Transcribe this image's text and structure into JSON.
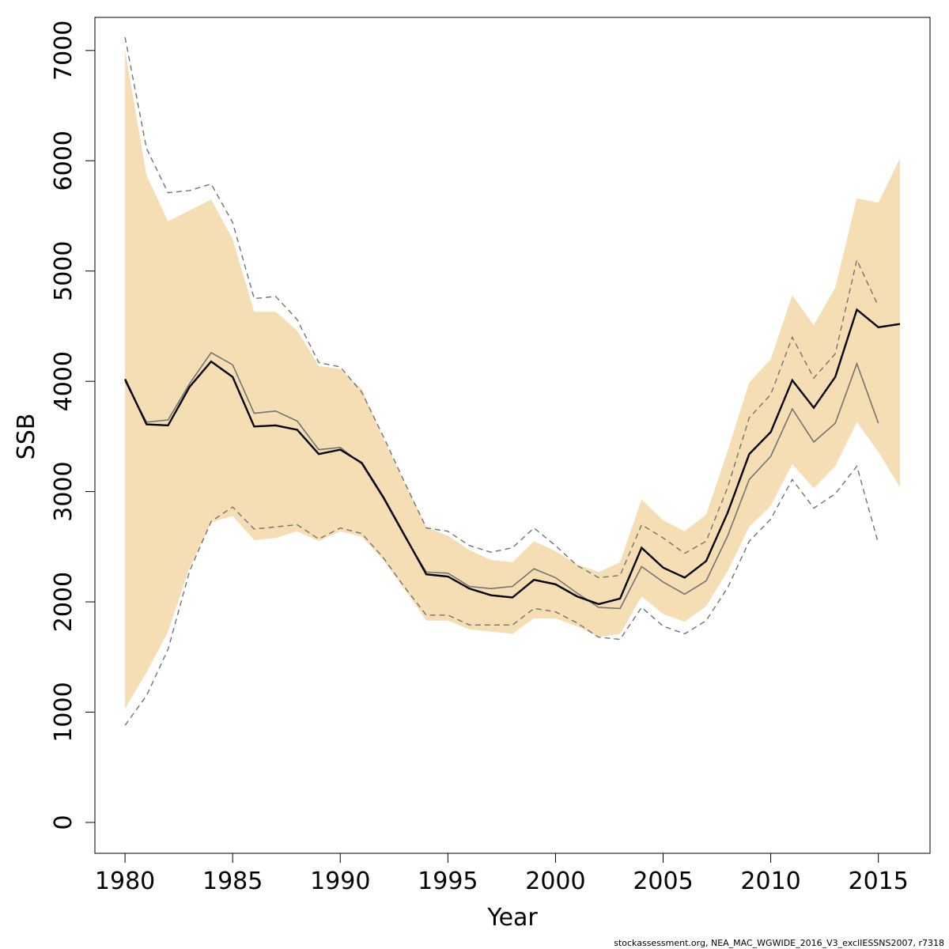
{
  "chart_data": {
    "type": "line",
    "title": "",
    "xlabel": "Year",
    "ylabel": "SSB",
    "xlim": [
      1978.6,
      2017.4
    ],
    "ylim": [
      -280,
      7300
    ],
    "x_ticks": [
      1980,
      1985,
      1990,
      1995,
      2000,
      2005,
      2010,
      2015
    ],
    "y_ticks": [
      0,
      1000,
      2000,
      3000,
      4000,
      5000,
      6000,
      7000
    ],
    "grid": false,
    "legend": "none",
    "colors": {
      "band": "#f5deb3",
      "current": "#000000",
      "previous": "#737373",
      "previous_ci": "#737373"
    },
    "footer": "stockassessment.org, NEA_MAC_WGWIDE_2016_V3_exclIESSNS2007, r7318",
    "years": [
      1980,
      1981,
      1982,
      1983,
      1984,
      1985,
      1986,
      1987,
      1988,
      1989,
      1990,
      1991,
      1992,
      1993,
      1994,
      1995,
      1996,
      1997,
      1998,
      1999,
      2000,
      2001,
      2002,
      2003,
      2004,
      2005,
      2006,
      2007,
      2008,
      2009,
      2010,
      2011,
      2012,
      2013,
      2014,
      2015,
      2016
    ],
    "band_low": [
      1030,
      1360,
      1730,
      2310,
      2720,
      2780,
      2560,
      2580,
      2640,
      2550,
      2640,
      2590,
      2380,
      2110,
      1830,
      1830,
      1750,
      1730,
      1710,
      1850,
      1850,
      1780,
      1680,
      1710,
      2050,
      1890,
      1820,
      1960,
      2280,
      2680,
      2870,
      3250,
      3030,
      3230,
      3630,
      3360,
      3040
    ],
    "band_high": [
      7000,
      5870,
      5450,
      5550,
      5650,
      5290,
      4630,
      4630,
      4460,
      4140,
      4110,
      3930,
      3480,
      3080,
      2680,
      2600,
      2470,
      2380,
      2360,
      2550,
      2460,
      2340,
      2270,
      2360,
      2930,
      2740,
      2640,
      2790,
      3370,
      3990,
      4200,
      4780,
      4510,
      4850,
      5660,
      5620,
      6020
    ],
    "series": [
      {
        "values": [
          4020,
          3610,
          3600,
          3950,
          4180,
          4040,
          3590,
          3600,
          3560,
          3340,
          3380,
          3260,
          2950,
          2600,
          2250,
          2230,
          2120,
          2060,
          2040,
          2200,
          2160,
          2050,
          1980,
          2030,
          2490,
          2310,
          2220,
          2370,
          2810,
          3340,
          3540,
          4010,
          3760,
          4040,
          4650,
          4490,
          4520
        ]
      },
      {
        "values": [
          4000,
          3630,
          3650,
          3980,
          4260,
          4150,
          3710,
          3730,
          3640,
          3380,
          3400,
          3250,
          2940,
          2590,
          2270,
          2260,
          2140,
          2120,
          2140,
          2300,
          2220,
          2080,
          1950,
          1940,
          2320,
          2180,
          2070,
          2190,
          2600,
          3110,
          3320,
          3750,
          3450,
          3620,
          4160,
          3620
        ]
      },
      {
        "values": [
          7120,
          6110,
          5710,
          5730,
          5790,
          5440,
          4750,
          4770,
          4560,
          4170,
          4130,
          3900,
          3500,
          3080,
          2670,
          2640,
          2510,
          2450,
          2490,
          2670,
          2510,
          2330,
          2220,
          2240,
          2700,
          2580,
          2440,
          2550,
          3040,
          3670,
          3880,
          4400,
          4030,
          4250,
          5100,
          4680
        ]
      },
      {
        "values": [
          880,
          1150,
          1570,
          2280,
          2730,
          2860,
          2660,
          2680,
          2700,
          2570,
          2670,
          2620,
          2400,
          2130,
          1880,
          1880,
          1790,
          1790,
          1790,
          1940,
          1910,
          1810,
          1680,
          1660,
          1950,
          1780,
          1710,
          1830,
          2130,
          2550,
          2750,
          3110,
          2850,
          2980,
          3230,
          2530
        ]
      }
    ]
  }
}
